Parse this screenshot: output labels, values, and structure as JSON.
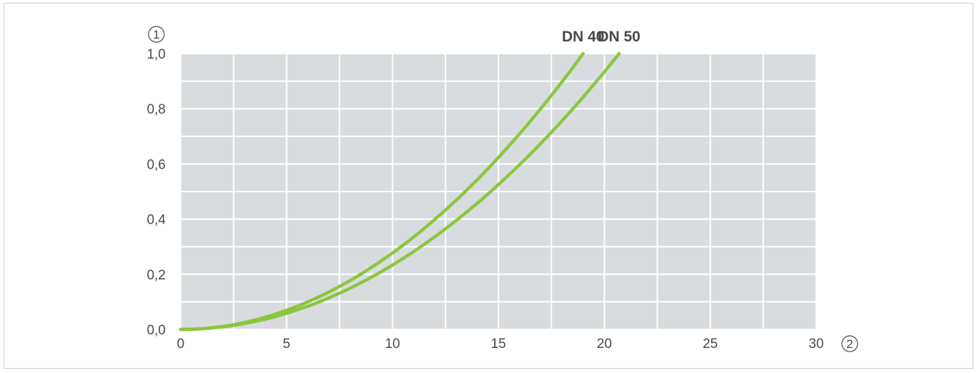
{
  "colors": {
    "plot_bg": "#d9dcde",
    "grid": "#ffffff",
    "curve": "#8cc63f",
    "text": "#4a4a4a"
  },
  "y_axis_callout": "1",
  "x_axis_callout": "2",
  "chart_data": {
    "type": "line",
    "title": "",
    "xlabel": "",
    "ylabel": "",
    "xlim": [
      0,
      30
    ],
    "ylim": [
      0,
      1.0
    ],
    "x_ticks": [
      "0",
      "5",
      "10",
      "15",
      "20",
      "25",
      "30"
    ],
    "y_ticks": [
      "0,0",
      "0,2",
      "0,4",
      "0,6",
      "0,8",
      "1,0"
    ],
    "grid": true,
    "series": [
      {
        "name": "DN 40",
        "x": [
          0,
          2.5,
          5,
          7.5,
          10,
          12.5,
          15,
          17.5,
          19
        ],
        "y": [
          0,
          0.017,
          0.069,
          0.156,
          0.277,
          0.433,
          0.623,
          0.848,
          1.0
        ]
      },
      {
        "name": "DN 50",
        "x": [
          0,
          2.5,
          5,
          7.5,
          10,
          12.5,
          15,
          17.5,
          20.7
        ],
        "y": [
          0,
          0.015,
          0.058,
          0.131,
          0.233,
          0.365,
          0.525,
          0.715,
          1.0
        ]
      }
    ]
  }
}
